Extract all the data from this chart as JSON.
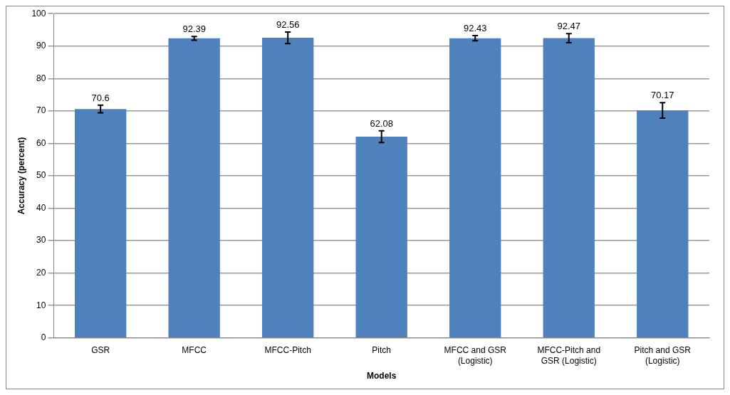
{
  "chart_data": {
    "type": "bar",
    "xlabel": "Models",
    "ylabel": "Accuracy (percent)",
    "categories": [
      "GSR",
      "MFCC",
      "MFCC-Pitch",
      "Pitch",
      "MFCC and GSR (Logistic)",
      "MFCC-Pitch and GSR (Logistic)",
      "Pitch and GSR (Logistic)"
    ],
    "values": [
      70.6,
      92.39,
      92.56,
      62.08,
      92.43,
      92.47,
      70.17
    ],
    "errors": [
      1.2,
      0.6,
      1.8,
      1.8,
      0.8,
      1.4,
      2.4
    ],
    "color": "#4f81bd",
    "ylim": [
      0,
      100
    ],
    "yticks": [
      0,
      10,
      20,
      30,
      40,
      50,
      60,
      70,
      80,
      90,
      100
    ],
    "grid": "y",
    "data_labels": true,
    "legend": false
  }
}
